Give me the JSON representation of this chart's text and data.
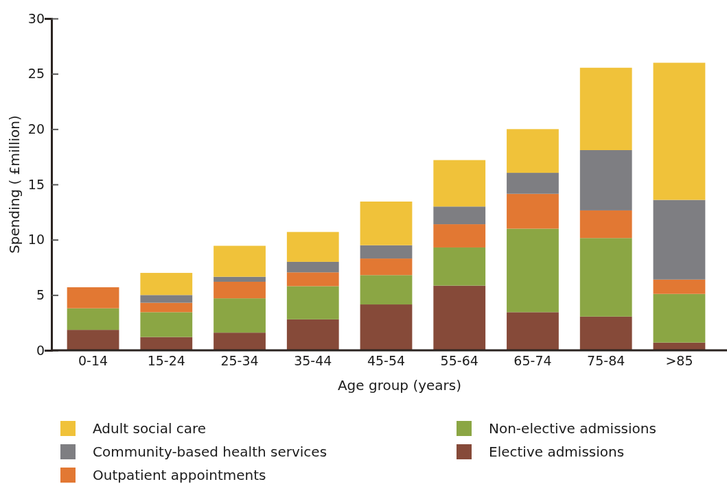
{
  "chart_data": {
    "type": "bar",
    "stacked": true,
    "xlabel": "Age group (years)",
    "ylabel": "Spending ( £million)",
    "categories": [
      "0-14",
      "15-24",
      "25-34",
      "35-44",
      "45-54",
      "55-64",
      "65-74",
      "75-84",
      ">85"
    ],
    "series": [
      {
        "name": "Elective admissions",
        "color": "#864a39",
        "values": [
          1.85,
          1.2,
          1.6,
          2.8,
          4.15,
          5.85,
          3.45,
          3.05,
          0.7
        ]
      },
      {
        "name": "Non-elective admissions",
        "color": "#8ba644",
        "values": [
          1.95,
          2.25,
          3.1,
          3.0,
          2.65,
          3.45,
          7.55,
          7.1,
          4.4
        ]
      },
      {
        "name": "Outpatient appointments",
        "color": "#e27833",
        "values": [
          1.9,
          0.85,
          1.5,
          1.25,
          1.5,
          2.1,
          3.15,
          2.5,
          1.3
        ]
      },
      {
        "name": "Community-based health services",
        "color": "#7e7e82",
        "values": [
          0,
          0.7,
          0.45,
          0.95,
          1.2,
          1.6,
          1.9,
          5.45,
          7.2
        ]
      },
      {
        "name": "Adult social care",
        "color": "#f0c23a",
        "values": [
          0,
          2.0,
          2.8,
          2.7,
          3.95,
          4.2,
          3.95,
          7.45,
          12.4
        ]
      }
    ],
    "ylim": [
      0,
      30
    ],
    "yticks": [
      0,
      5,
      10,
      15,
      20,
      25,
      30
    ],
    "grid": false,
    "legend": "bottom"
  }
}
